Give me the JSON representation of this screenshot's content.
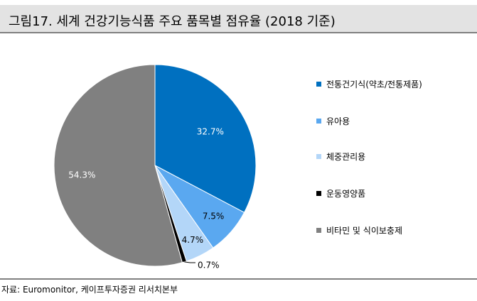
{
  "title": "그림17. 세계 건강기능식품 주요 품목별 점유율 (2018 기준)",
  "source": "자료: Euromonitor, 케이프투자증권 리서치본부",
  "chart_data": {
    "type": "pie",
    "start_angle_deg": 0,
    "direction": "clockwise",
    "slices": [
      {
        "name": "전통건기식(약초/전통제품)",
        "value": 32.7,
        "label": "32.7%",
        "color": "#0070c0",
        "label_color": "#ffffff"
      },
      {
        "name": "유아용",
        "value": 7.5,
        "label": "7.5%",
        "color": "#5aa8f0",
        "label_color": "#000000"
      },
      {
        "name": "체중관리용",
        "value": 4.7,
        "label": "4.7%",
        "color": "#b3d6f8",
        "label_color": "#000000"
      },
      {
        "name": "운동영양품",
        "value": 0.7,
        "label": "0.7%",
        "color": "#000000",
        "label_color": "#000000"
      },
      {
        "name": "비타민 및 식이보충제",
        "value": 54.3,
        "label": "54.3%",
        "color": "#808080",
        "label_color": "#ffffff"
      }
    ],
    "legend_position": "right"
  }
}
